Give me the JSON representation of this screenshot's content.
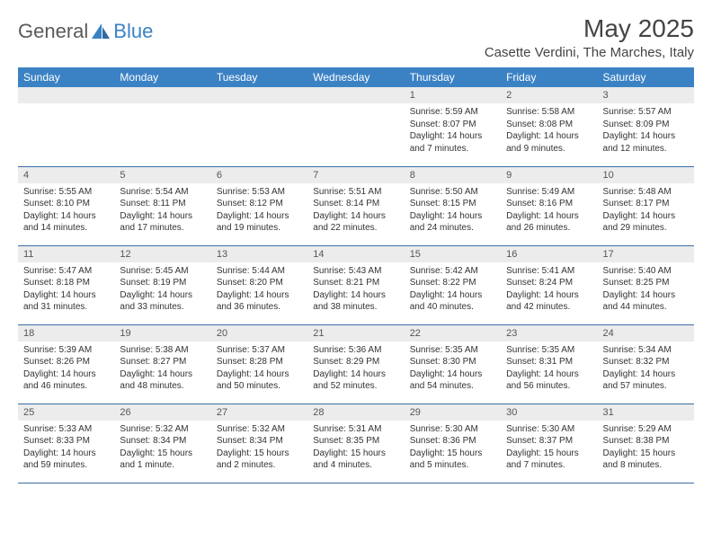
{
  "brand": {
    "part1": "General",
    "part2": "Blue"
  },
  "title": "May 2025",
  "location": "Casette Verdini, The Marches, Italy",
  "colors": {
    "header_bg": "#3b82c4",
    "header_text": "#ffffff",
    "daynum_bg": "#ececec",
    "row_border": "#3b6ea5",
    "text": "#333333"
  },
  "weekdays": [
    "Sunday",
    "Monday",
    "Tuesday",
    "Wednesday",
    "Thursday",
    "Friday",
    "Saturday"
  ],
  "weeks": [
    [
      null,
      null,
      null,
      null,
      {
        "n": "1",
        "sr": "5:59 AM",
        "ss": "8:07 PM",
        "dl": "14 hours and 7 minutes."
      },
      {
        "n": "2",
        "sr": "5:58 AM",
        "ss": "8:08 PM",
        "dl": "14 hours and 9 minutes."
      },
      {
        "n": "3",
        "sr": "5:57 AM",
        "ss": "8:09 PM",
        "dl": "14 hours and 12 minutes."
      }
    ],
    [
      {
        "n": "4",
        "sr": "5:55 AM",
        "ss": "8:10 PM",
        "dl": "14 hours and 14 minutes."
      },
      {
        "n": "5",
        "sr": "5:54 AM",
        "ss": "8:11 PM",
        "dl": "14 hours and 17 minutes."
      },
      {
        "n": "6",
        "sr": "5:53 AM",
        "ss": "8:12 PM",
        "dl": "14 hours and 19 minutes."
      },
      {
        "n": "7",
        "sr": "5:51 AM",
        "ss": "8:14 PM",
        "dl": "14 hours and 22 minutes."
      },
      {
        "n": "8",
        "sr": "5:50 AM",
        "ss": "8:15 PM",
        "dl": "14 hours and 24 minutes."
      },
      {
        "n": "9",
        "sr": "5:49 AM",
        "ss": "8:16 PM",
        "dl": "14 hours and 26 minutes."
      },
      {
        "n": "10",
        "sr": "5:48 AM",
        "ss": "8:17 PM",
        "dl": "14 hours and 29 minutes."
      }
    ],
    [
      {
        "n": "11",
        "sr": "5:47 AM",
        "ss": "8:18 PM",
        "dl": "14 hours and 31 minutes."
      },
      {
        "n": "12",
        "sr": "5:45 AM",
        "ss": "8:19 PM",
        "dl": "14 hours and 33 minutes."
      },
      {
        "n": "13",
        "sr": "5:44 AM",
        "ss": "8:20 PM",
        "dl": "14 hours and 36 minutes."
      },
      {
        "n": "14",
        "sr": "5:43 AM",
        "ss": "8:21 PM",
        "dl": "14 hours and 38 minutes."
      },
      {
        "n": "15",
        "sr": "5:42 AM",
        "ss": "8:22 PM",
        "dl": "14 hours and 40 minutes."
      },
      {
        "n": "16",
        "sr": "5:41 AM",
        "ss": "8:24 PM",
        "dl": "14 hours and 42 minutes."
      },
      {
        "n": "17",
        "sr": "5:40 AM",
        "ss": "8:25 PM",
        "dl": "14 hours and 44 minutes."
      }
    ],
    [
      {
        "n": "18",
        "sr": "5:39 AM",
        "ss": "8:26 PM",
        "dl": "14 hours and 46 minutes."
      },
      {
        "n": "19",
        "sr": "5:38 AM",
        "ss": "8:27 PM",
        "dl": "14 hours and 48 minutes."
      },
      {
        "n": "20",
        "sr": "5:37 AM",
        "ss": "8:28 PM",
        "dl": "14 hours and 50 minutes."
      },
      {
        "n": "21",
        "sr": "5:36 AM",
        "ss": "8:29 PM",
        "dl": "14 hours and 52 minutes."
      },
      {
        "n": "22",
        "sr": "5:35 AM",
        "ss": "8:30 PM",
        "dl": "14 hours and 54 minutes."
      },
      {
        "n": "23",
        "sr": "5:35 AM",
        "ss": "8:31 PM",
        "dl": "14 hours and 56 minutes."
      },
      {
        "n": "24",
        "sr": "5:34 AM",
        "ss": "8:32 PM",
        "dl": "14 hours and 57 minutes."
      }
    ],
    [
      {
        "n": "25",
        "sr": "5:33 AM",
        "ss": "8:33 PM",
        "dl": "14 hours and 59 minutes."
      },
      {
        "n": "26",
        "sr": "5:32 AM",
        "ss": "8:34 PM",
        "dl": "15 hours and 1 minute."
      },
      {
        "n": "27",
        "sr": "5:32 AM",
        "ss": "8:34 PM",
        "dl": "15 hours and 2 minutes."
      },
      {
        "n": "28",
        "sr": "5:31 AM",
        "ss": "8:35 PM",
        "dl": "15 hours and 4 minutes."
      },
      {
        "n": "29",
        "sr": "5:30 AM",
        "ss": "8:36 PM",
        "dl": "15 hours and 5 minutes."
      },
      {
        "n": "30",
        "sr": "5:30 AM",
        "ss": "8:37 PM",
        "dl": "15 hours and 7 minutes."
      },
      {
        "n": "31",
        "sr": "5:29 AM",
        "ss": "8:38 PM",
        "dl": "15 hours and 8 minutes."
      }
    ]
  ],
  "labels": {
    "sunrise": "Sunrise:",
    "sunset": "Sunset:",
    "daylight": "Daylight:"
  }
}
